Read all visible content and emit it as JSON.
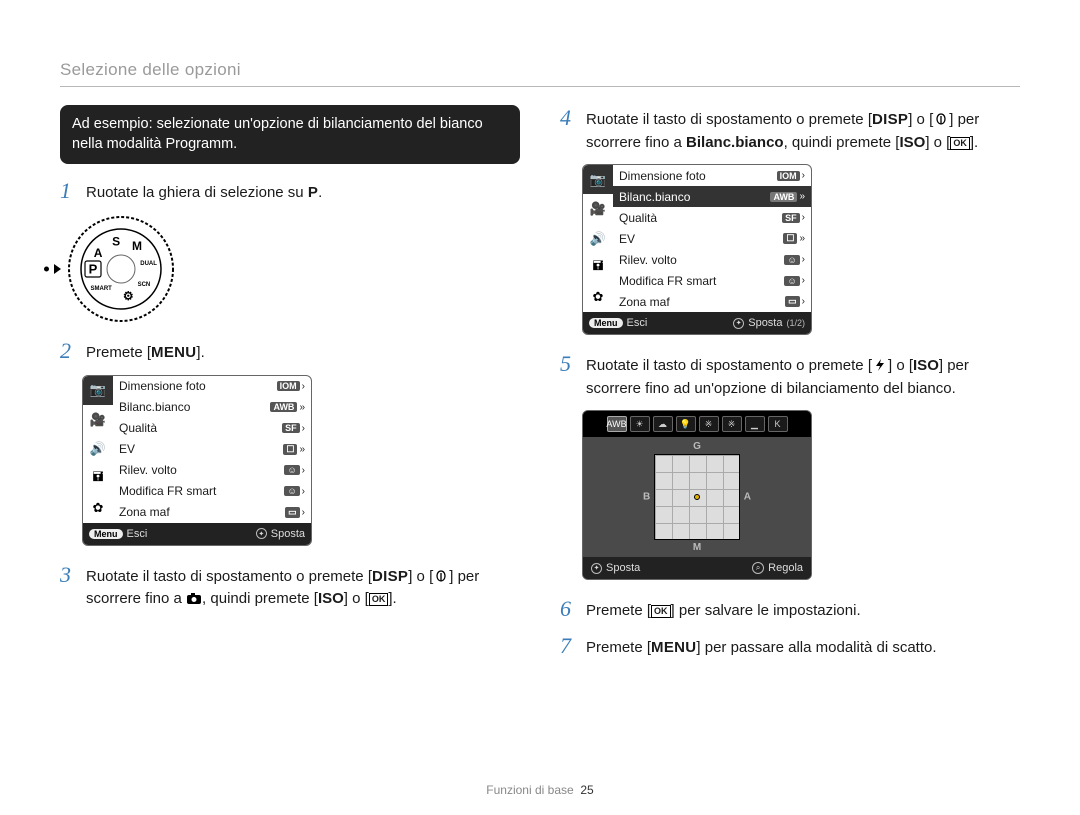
{
  "header": "Selezione delle opzioni",
  "blackbox": "Ad esempio: selezionate un'opzione di bilanciamento del bianco nella modalità Programm.",
  "steps": {
    "1": {
      "num": "1",
      "text_a": "Ruotate la ghiera di selezione su ",
      "mode": "P",
      "text_b": "."
    },
    "2": {
      "num": "2",
      "text_a": "Premete [",
      "btn": "MENU",
      "text_b": "]."
    },
    "3": {
      "num": "3",
      "t1": "Ruotate il tasto di spostamento o premete [",
      "disp": "DISP",
      "t2": "] o [",
      "t3": "] per scorrere fino a ",
      "t4": ", quindi premete [",
      "iso": "ISO",
      "t5": "] o [",
      "t6": "]."
    },
    "4": {
      "num": "4",
      "t1": "Ruotate il tasto di spostamento o premete [",
      "disp": "DISP",
      "t2": "] o [",
      "t3": "] per scorrere fino a ",
      "bold": "Bilanc.bianco",
      "t4": ", quindi premete [",
      "iso": "ISO",
      "t5": "] o [",
      "t6": "]."
    },
    "5": {
      "num": "5",
      "t1": "Ruotate il tasto di spostamento o premete [",
      "t2": "] o [",
      "iso": "ISO",
      "t3": "] per scorrere fino ad un'opzione di bilanciamento del bianco."
    },
    "6": {
      "num": "6",
      "t1": "Premete [",
      "t2": "] per salvare le impostazioni."
    },
    "7": {
      "num": "7",
      "t1": "Premete [",
      "btn": "MENU",
      "t2": "] per passare alla modalità di scatto."
    }
  },
  "dial": {
    "labels": [
      "SMART",
      "⚙",
      "SCN",
      "DUAL",
      "M",
      "S",
      "A",
      "P"
    ]
  },
  "menu_panel": {
    "side_icons": [
      "📷",
      "🎥",
      "🔊",
      "🖬",
      "✿"
    ],
    "rows": [
      {
        "label": "Dimensione foto",
        "val": "IOM",
        "arrow": "›"
      },
      {
        "label": "Bilanc.bianco",
        "val": "AWB",
        "arrow": "»"
      },
      {
        "label": "Qualità",
        "val": "SF",
        "arrow": "›"
      },
      {
        "label": "EV",
        "val": "☐",
        "arrow": "»"
      },
      {
        "label": "Rilev. volto",
        "val": "☺",
        "arrow": "›"
      },
      {
        "label": "Modifica FR smart",
        "val": "☺",
        "arrow": "›"
      },
      {
        "label": "Zona maf",
        "val": "▭",
        "arrow": "›"
      }
    ],
    "footer": {
      "menu": "Menu",
      "esci": "Esci",
      "sposta": "Sposta",
      "page": "(1/2)"
    }
  },
  "menu_panel_b": {
    "selected_index": 1
  },
  "wb": {
    "strip": [
      "AWB",
      "☀",
      "☁",
      "💡",
      "※",
      "※",
      "▁",
      "K"
    ],
    "axes": {
      "g": "G",
      "b": "B",
      "a": "A",
      "m": "M"
    },
    "footer": {
      "sposta": "Sposta",
      "regola": "Regola"
    }
  },
  "footer": {
    "section": "Funzioni di base",
    "page": "25"
  },
  "icons": {
    "ok_top": "OK",
    "ok_bot": "⌗"
  },
  "colors": {
    "step_num": "#3a7db8",
    "header_gray": "#9a9a9a",
    "panel_border": "#666666",
    "panel_footer_bg": "#222222",
    "wb_bg": "#000000",
    "wb_area_bg": "#4a4a4a"
  }
}
